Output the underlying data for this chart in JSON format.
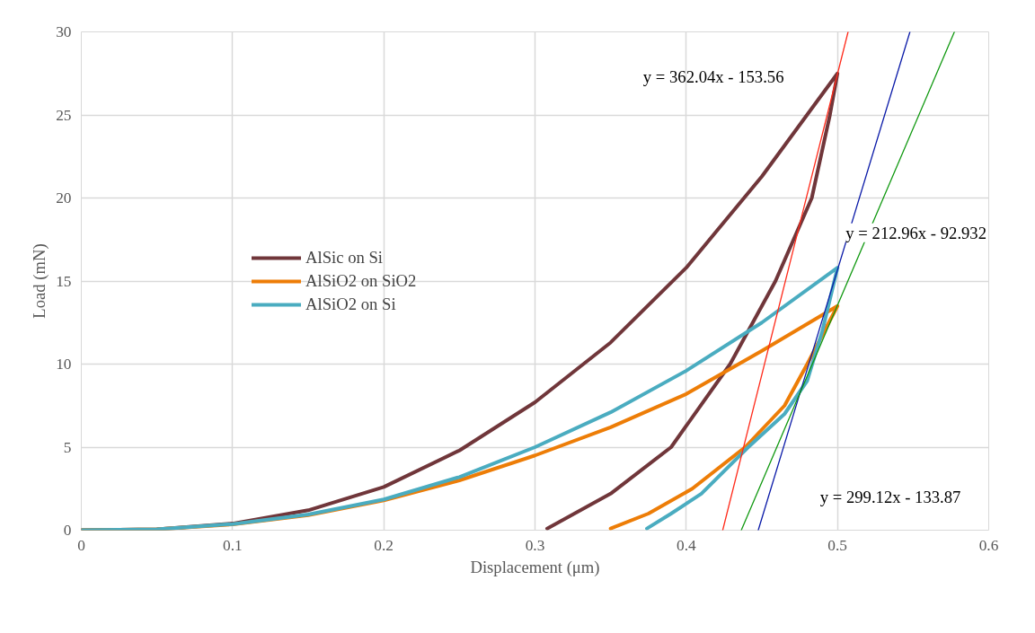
{
  "chart_data": {
    "type": "line",
    "xlabel": "Displacement (μm)",
    "ylabel": "Load (mN)",
    "xlim": [
      0,
      0.6
    ],
    "ylim": [
      0,
      30
    ],
    "xticks": [
      0,
      0.1,
      0.2,
      0.3,
      0.4,
      0.5,
      0.6
    ],
    "yticks": [
      0,
      5,
      10,
      15,
      20,
      25,
      30
    ],
    "grid": true,
    "legend": "left",
    "marker": "none",
    "line_style": "solid",
    "series": [
      {
        "name": "AlSic on Si",
        "color": "#70363a",
        "x": [
          0,
          0.05,
          0.1,
          0.15,
          0.2,
          0.25,
          0.3,
          0.35,
          0.4,
          0.45,
          0.5,
          0.495,
          0.483,
          0.459,
          0.429,
          0.39,
          0.35,
          0.308
        ],
        "values": [
          0,
          0.05,
          0.4,
          1.2,
          2.6,
          4.8,
          7.7,
          11.3,
          15.8,
          21.3,
          27.5,
          25,
          20,
          15,
          10,
          5,
          2.2,
          0.1
        ]
      },
      {
        "name": "AlSiO2 on SiO2",
        "color": "#ed7d07",
        "x": [
          0,
          0.05,
          0.1,
          0.15,
          0.2,
          0.25,
          0.3,
          0.35,
          0.4,
          0.45,
          0.5,
          0.48,
          0.465,
          0.439,
          0.404,
          0.375,
          0.35
        ],
        "values": [
          0,
          0.05,
          0.35,
          0.9,
          1.8,
          3.0,
          4.5,
          6.2,
          8.2,
          10.8,
          13.5,
          10,
          7.5,
          5,
          2.5,
          1.0,
          0.1
        ]
      },
      {
        "name": "AlSiO2 on Si",
        "color": "#4aacc0",
        "x": [
          0,
          0.05,
          0.1,
          0.15,
          0.2,
          0.25,
          0.3,
          0.35,
          0.4,
          0.45,
          0.5,
          0.49,
          0.48,
          0.465,
          0.441,
          0.41,
          0.39,
          0.374
        ],
        "values": [
          0,
          0.05,
          0.37,
          0.95,
          1.85,
          3.2,
          5.0,
          7.1,
          9.6,
          12.5,
          15.8,
          12,
          9,
          7,
          5,
          2.2,
          1.0,
          0.1
        ]
      },
      {
        "color": "#ff2a1a",
        "x": [
          0.4241,
          0.507
        ],
        "values": [
          0,
          30
        ]
      },
      {
        "color": "#0a1aa8",
        "x": [
          0.4476,
          0.5479
        ],
        "values": [
          0,
          30
        ]
      },
      {
        "color": "#119911",
        "x": [
          0.4364,
          0.5773
        ],
        "values": [
          0,
          30
        ]
      }
    ],
    "annotations": [
      "y = 362.04x - 153.56",
      "y = 212.96x - 92.932",
      "y = 299.12x - 133.87"
    ]
  }
}
